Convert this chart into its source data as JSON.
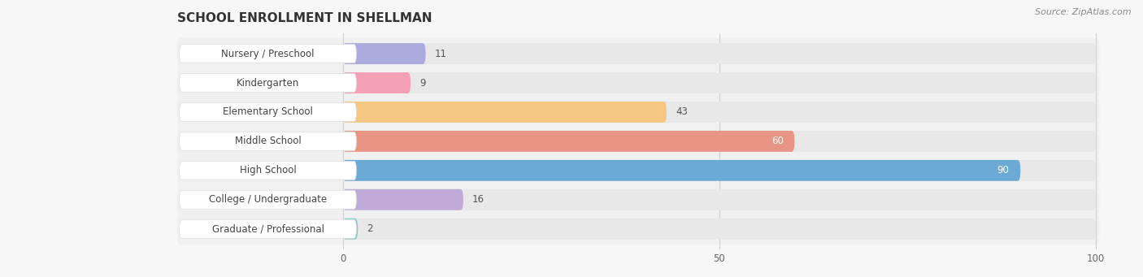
{
  "title": "SCHOOL ENROLLMENT IN SHELLMAN",
  "source": "Source: ZipAtlas.com",
  "categories": [
    "Nursery / Preschool",
    "Kindergarten",
    "Elementary School",
    "Middle School",
    "High School",
    "College / Undergraduate",
    "Graduate / Professional"
  ],
  "values": [
    11,
    9,
    43,
    60,
    90,
    16,
    2
  ],
  "colors": [
    "#aaaadd",
    "#f4a0b5",
    "#f5c882",
    "#e89585",
    "#6aaad4",
    "#c0aad8",
    "#7eccc4"
  ],
  "xlim_data": 100,
  "xticks": [
    0,
    50,
    100
  ],
  "background_color": "#f7f7f7",
  "bar_bg_color": "#e8e8e8",
  "row_bg_color": "#f0f0f0",
  "title_fontsize": 11,
  "label_fontsize": 8.5,
  "value_fontsize": 8.5,
  "source_fontsize": 8
}
